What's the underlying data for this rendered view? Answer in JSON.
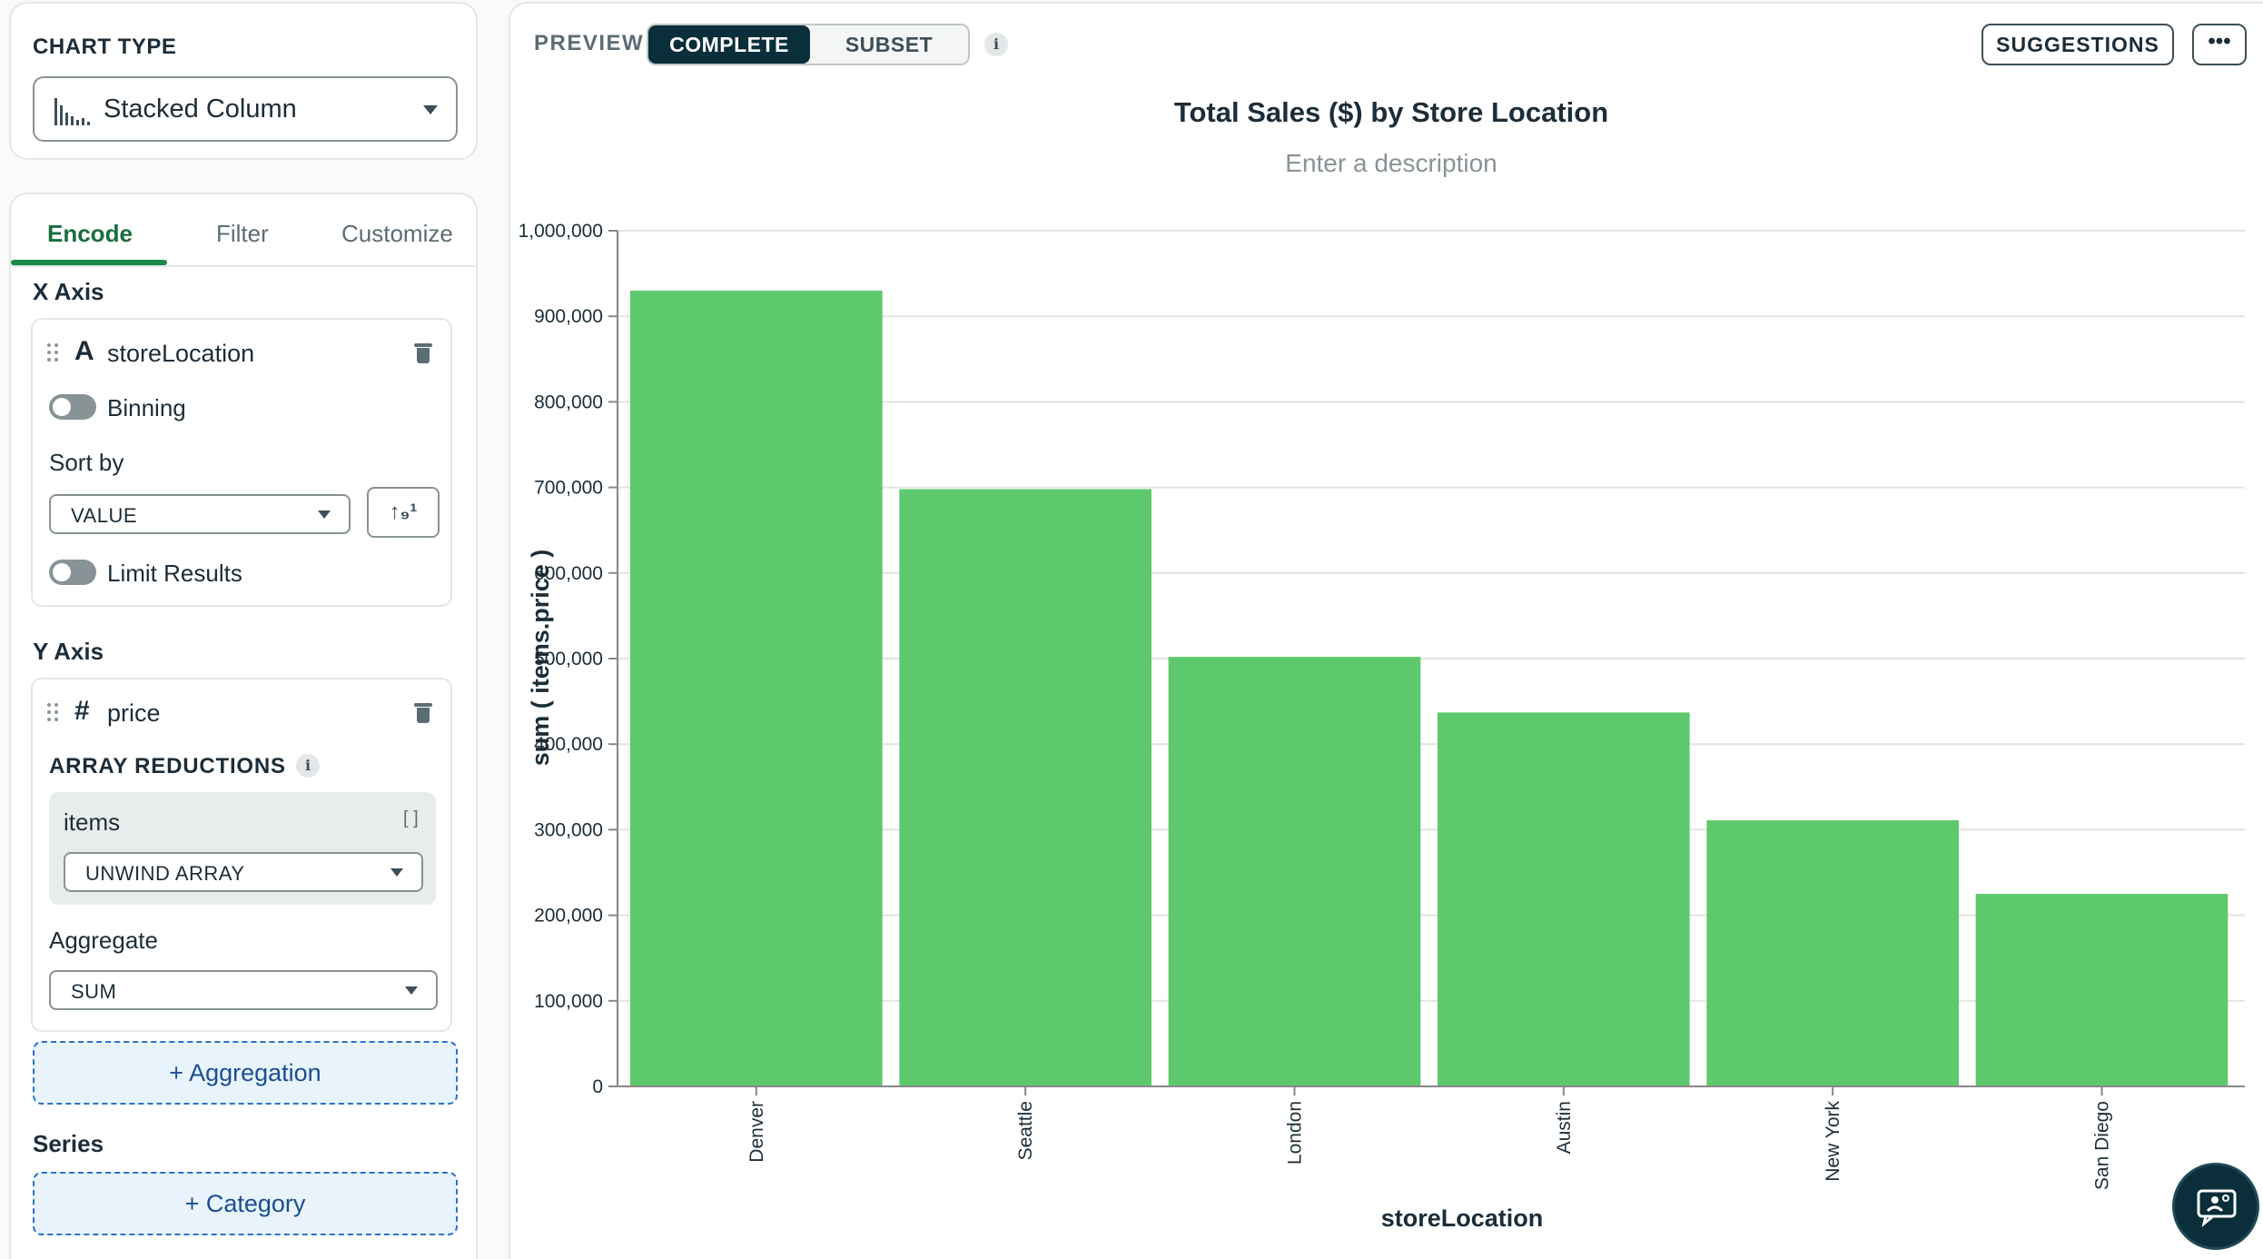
{
  "chart_type_card": {
    "title": "CHART TYPE",
    "selected": "Stacked Column",
    "icon": "stacked-column-chart-icon"
  },
  "encode_panel": {
    "tabs": [
      {
        "label": "Encode",
        "active": true
      },
      {
        "label": "Filter",
        "active": false
      },
      {
        "label": "Customize",
        "active": false
      }
    ],
    "x_axis": {
      "title": "X Axis",
      "field_type_glyph": "A",
      "field_name": "storeLocation",
      "binning_label": "Binning",
      "binning_on": false,
      "sort_by_label": "Sort by",
      "sort_by_value": "VALUE",
      "sort_direction_glyph": "↑₉¹",
      "limit_results_label": "Limit Results",
      "limit_results_on": false
    },
    "y_axis": {
      "title": "Y Axis",
      "field_type_glyph": "#",
      "field_name": "price",
      "array_reductions_label": "ARRAY REDUCTIONS",
      "info_glyph": "i",
      "reduction_field": "items",
      "reduction_field_glyph": "[ ]",
      "reduction_value": "UNWIND ARRAY",
      "aggregate_label": "Aggregate",
      "aggregate_value": "SUM"
    },
    "add_aggregation_label": "+ Aggregation",
    "series": {
      "title": "Series",
      "add_category_label": "+ Category"
    }
  },
  "preview": {
    "label": "PREVIEW",
    "segments": [
      {
        "label": "COMPLETE",
        "active": true
      },
      {
        "label": "SUBSET",
        "active": false
      }
    ],
    "info_glyph": "i",
    "suggestions_label": "SUGGESTIONS",
    "more_glyph": "•••",
    "description_placeholder": "Enter a description"
  },
  "chart_data": {
    "type": "bar",
    "title": "Total Sales ($) by Store Location",
    "categories": [
      "Denver",
      "Seattle",
      "London",
      "Austin",
      "New York",
      "San Diego"
    ],
    "values": [
      930000,
      698000,
      502000,
      437000,
      311000,
      225000
    ],
    "xlabel": "storeLocation",
    "ylabel": "sum ( items.price )",
    "ylim": [
      0,
      1000000
    ],
    "yticks": [
      0,
      100000,
      200000,
      300000,
      400000,
      500000,
      600000,
      700000,
      800000,
      900000,
      1000000
    ],
    "ytick_labels": [
      "0",
      "100,000",
      "200,000",
      "300,000",
      "400,000",
      "500,000",
      "600,000",
      "700,000",
      "800,000",
      "900,000",
      "1,000,000"
    ],
    "grid": true,
    "bar_color": "#5ec96c"
  },
  "chat_button": {
    "icon": "chat-support-icon"
  }
}
